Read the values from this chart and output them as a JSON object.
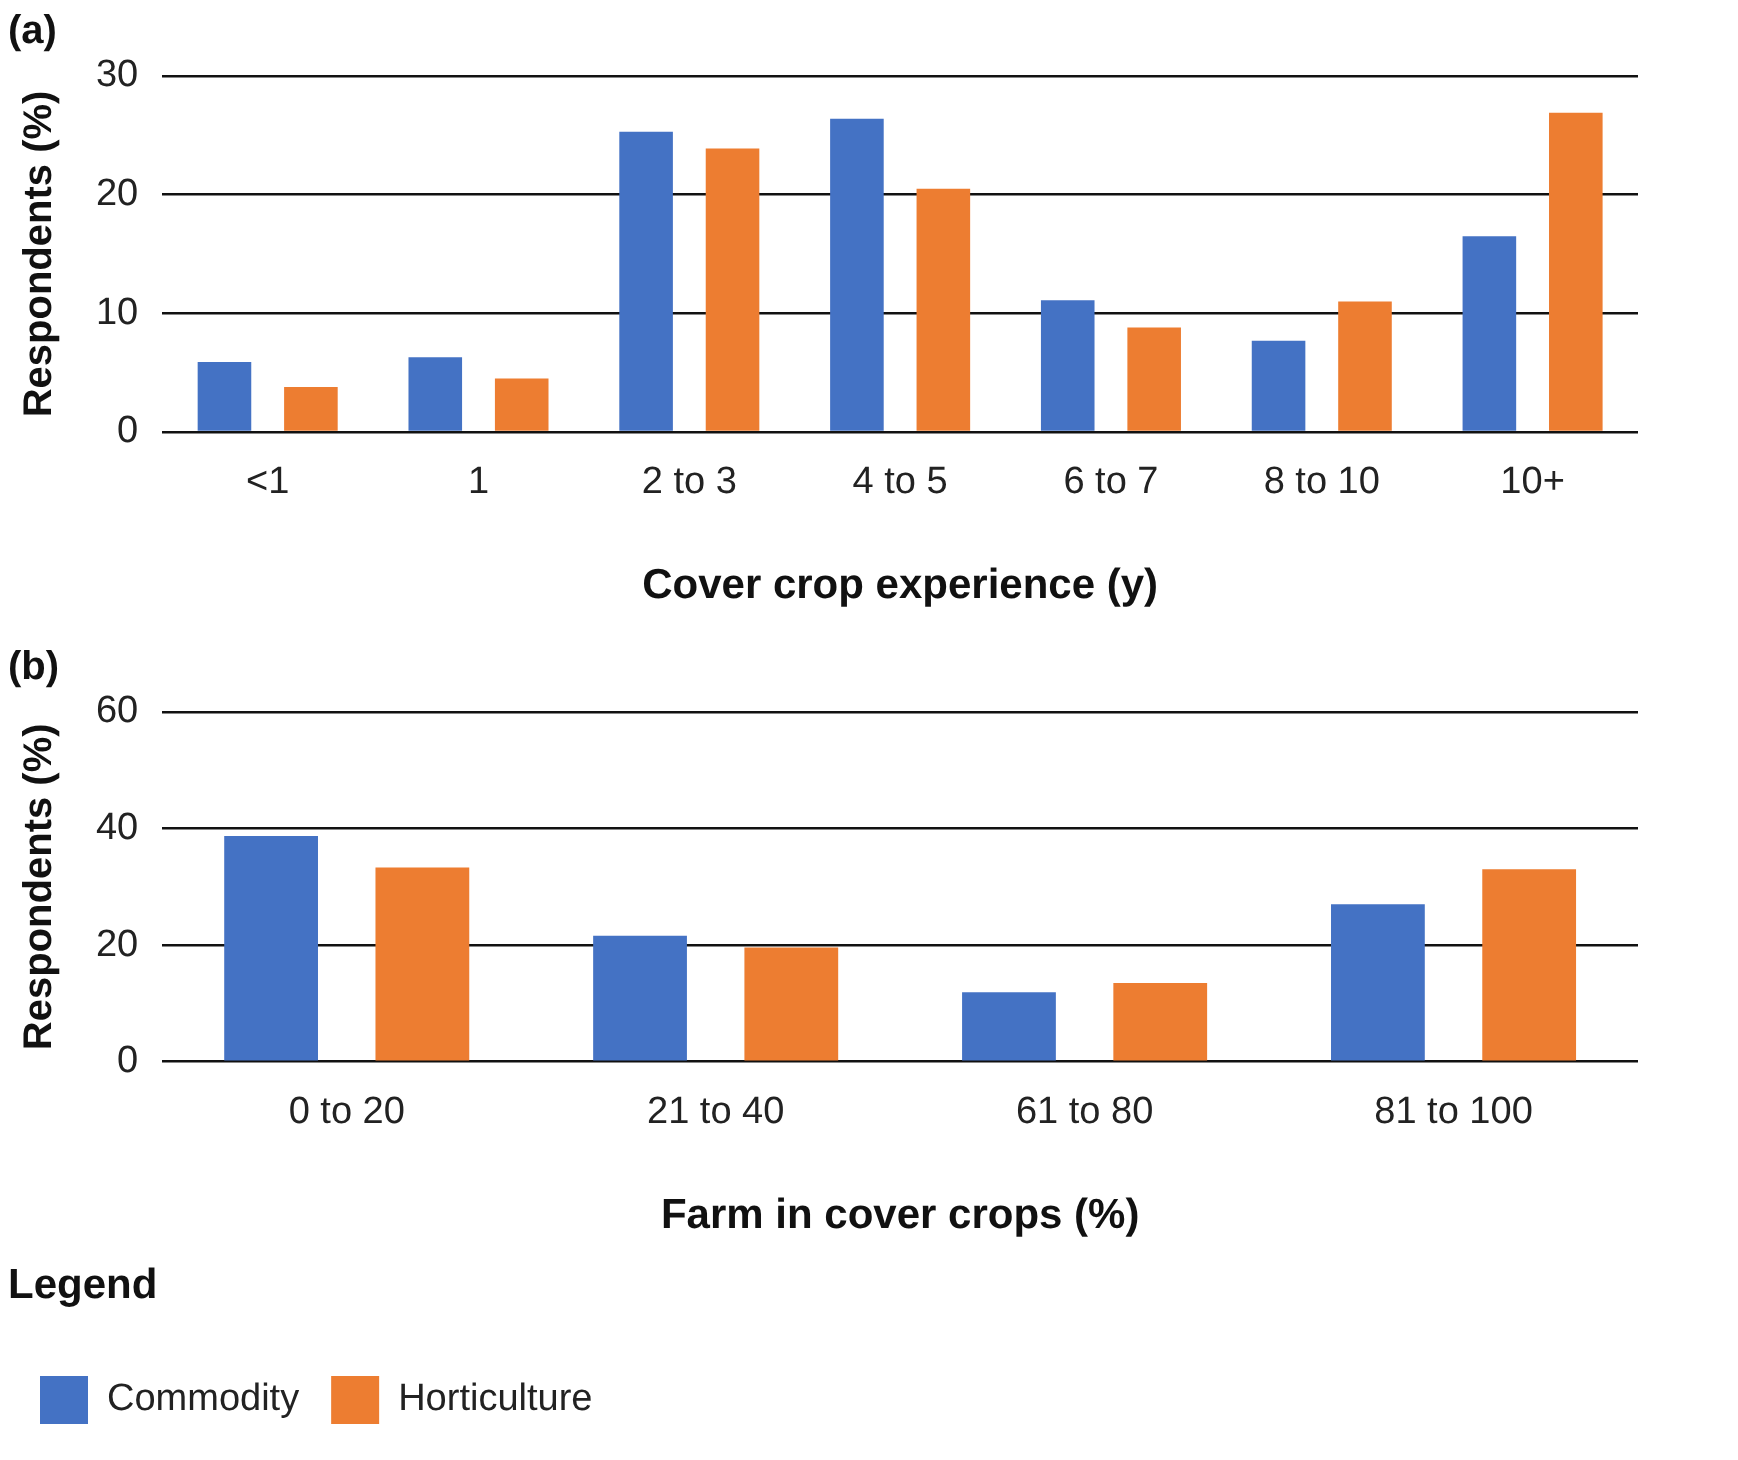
{
  "chart_data": [
    {
      "type": "bar",
      "title": "(a)",
      "xlabel": "Cover crop experience (y)",
      "ylabel": "Respondents (%)",
      "categories": [
        "<1",
        "1",
        "2 to 3",
        "4 to 5",
        "6 to 7",
        "8 to 10",
        "10+"
      ],
      "series": [
        {
          "color": "#4472c4",
          "values": [
            5.9,
            6.3,
            25.3,
            26.4,
            11.1,
            7.7,
            16.5
          ]
        },
        {
          "color": "#ed7d31",
          "values": [
            3.8,
            4.5,
            23.9,
            20.5,
            8.8,
            11.0,
            26.9
          ]
        }
      ],
      "ylim": [
        0,
        30
      ],
      "yticks": [
        0,
        10,
        20,
        30
      ],
      "grid": "y",
      "legend": false
    },
    {
      "type": "bar",
      "title": "(b)",
      "xlabel": "Farm in cover crops (%)",
      "ylabel": "Respondents (%)",
      "legend_title": "Legend",
      "categories": [
        "0 to 20",
        "21 to 40",
        "61 to 80",
        "81 to 100"
      ],
      "series": [
        {
          "name": "Commodity",
          "color": "#4472c4",
          "values": [
            38.7,
            21.6,
            11.9,
            27.0
          ]
        },
        {
          "name": "Horticulture",
          "color": "#ed7d31",
          "values": [
            33.3,
            19.6,
            13.5,
            33.0
          ]
        }
      ],
      "ylim": [
        0,
        60
      ],
      "yticks": [
        0,
        20,
        40,
        60
      ],
      "grid": "y",
      "legend": "bottom"
    }
  ]
}
